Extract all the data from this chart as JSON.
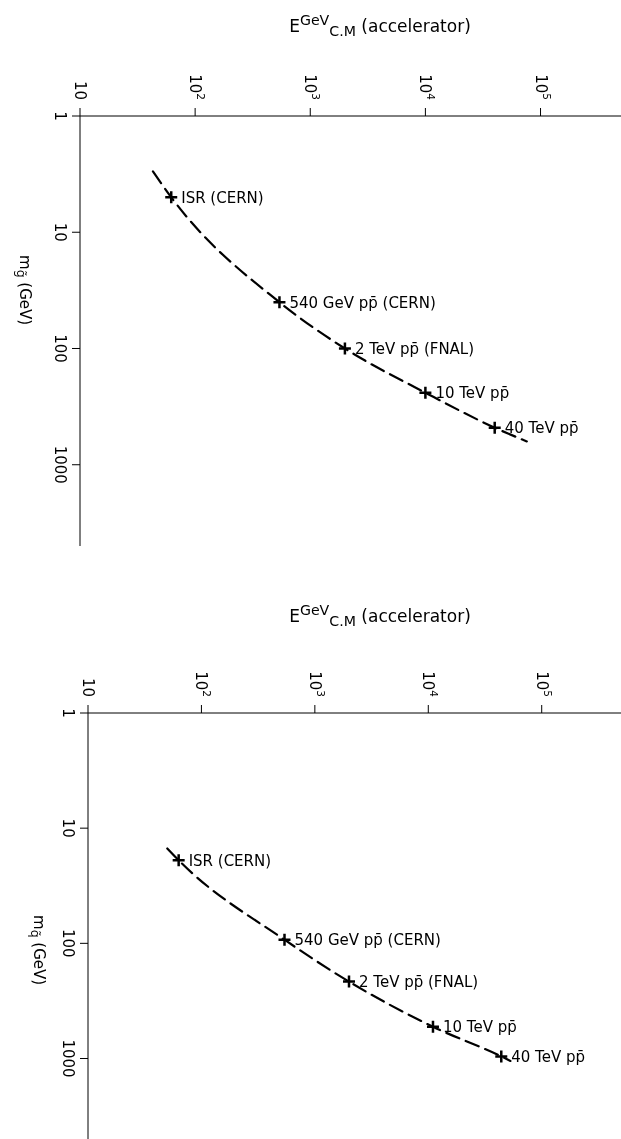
{
  "chart_data": [
    {
      "type": "line",
      "xlabel": "E$^{GeV}$$_{C.M}$ (accelerator)",
      "ylabel": "m$_{g̃}$ (GeV)",
      "log": "xy",
      "xlim": [
        10,
        500000
      ],
      "xticks": [
        10,
        {
          "value": 100,
          "label": "10$^{2}$"
        },
        {
          "value": 1000,
          "label": "10$^{3}$"
        },
        {
          "value": 10000,
          "label": "10$^{4}$"
        },
        {
          "value": 100000,
          "label": "10$^{5}$"
        }
      ],
      "ylim": [
        5000,
        1
      ],
      "yticks": [
        1,
        10,
        100,
        1000
      ],
      "series": [
        {
          "color": "#000000",
          "line_style": "dashed",
          "marker": "none",
          "x": [
            43,
            62,
            540,
            2000,
            10000,
            40000,
            76000
          ],
          "values": [
            3,
            5,
            40,
            100,
            240,
            480,
            630
          ]
        },
        {
          "type": "scatter",
          "color": "#000000",
          "marker": "cross",
          "x": [
            62,
            540,
            2000,
            10000,
            40000
          ],
          "values": [
            5,
            40,
            100,
            240,
            480
          ]
        }
      ],
      "annotations": [
        {
          "text": "ISR (CERN)",
          "x": 62,
          "y": 5
        },
        {
          "text": "540 GeV pp̄ (CERN)",
          "x": 540,
          "y": 40
        },
        {
          "text": "2 TeV pp̄ (FNAL)",
          "x": 2000,
          "y": 100
        },
        {
          "text": "10 TeV pp̄",
          "x": 10000,
          "y": 240
        },
        {
          "text": "40 TeV pp̄",
          "x": 40000,
          "y": 480
        }
      ]
    },
    {
      "type": "line",
      "xlabel": "E$^{GeV}$$_{C.M}$ (accelerator)",
      "ylabel": "m$_{q̃}$ (GeV)",
      "log": "xy",
      "xlim": [
        10,
        500000
      ],
      "xticks": [
        10,
        {
          "value": 100,
          "label": "10$^{2}$"
        },
        {
          "value": 1000,
          "label": "10$^{3}$"
        },
        {
          "value": 10000,
          "label": "10$^{4}$"
        },
        {
          "value": 100000,
          "label": "10$^{5}$"
        }
      ],
      "ylim": [
        5000,
        1
      ],
      "yticks": [
        1,
        10,
        100,
        1000
      ],
      "series": [
        {
          "color": "#000000",
          "line_style": "dashed",
          "marker": "none",
          "x": [
            50,
            63,
            540,
            2000,
            11000,
            44000,
            53000
          ],
          "values": [
            15,
            19,
            93,
            215,
            530,
            960,
            1050
          ]
        },
        {
          "type": "scatter",
          "color": "#000000",
          "marker": "cross",
          "x": [
            63,
            540,
            2000,
            11000,
            44000
          ],
          "values": [
            19,
            93,
            215,
            530,
            960
          ]
        }
      ],
      "annotations": [
        {
          "text": "ISR (CERN)",
          "x": 63,
          "y": 19
        },
        {
          "text": "540 GeV pp̄ (CERN)",
          "x": 540,
          "y": 93
        },
        {
          "text": "2 TeV pp̄ (FNAL)",
          "x": 2000,
          "y": 215
        },
        {
          "text": "10 TeV pp̄",
          "x": 11000,
          "y": 530
        },
        {
          "text": "40 TeV pp̄",
          "x": 44000,
          "y": 960
        }
      ]
    }
  ]
}
